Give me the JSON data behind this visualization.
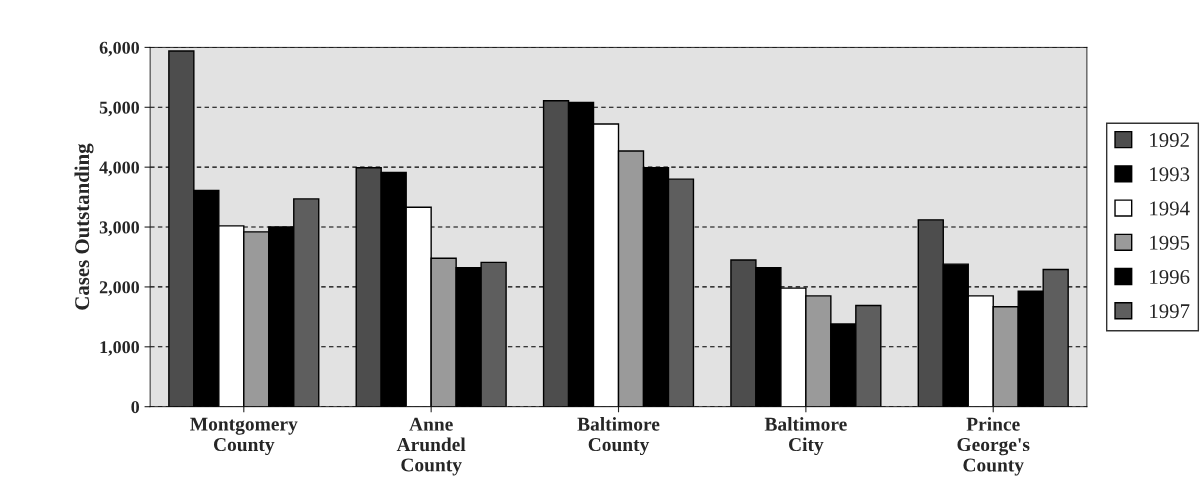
{
  "chart_data": {
    "type": "bar",
    "ylabel": "Cases Outstanding",
    "categories": [
      "Montgomery\nCounty",
      "Anne\nArundel\nCounty",
      "Baltimore\nCounty",
      "Baltimore\nCity",
      "Prince\nGeorge's\nCounty"
    ],
    "series": [
      {
        "name": "1992",
        "color": "#4d4d4d",
        "values": [
          5940,
          3990,
          5110,
          2450,
          3120
        ]
      },
      {
        "name": "1993",
        "color": "#000000",
        "values": [
          3610,
          3910,
          5080,
          2320,
          2380
        ]
      },
      {
        "name": "1994",
        "color": "#ffffff",
        "values": [
          3020,
          3330,
          4720,
          1980,
          1850
        ]
      },
      {
        "name": "1995",
        "color": "#9a9a9a",
        "values": [
          2920,
          2480,
          4270,
          1850,
          1670
        ]
      },
      {
        "name": "1996",
        "color": "#000000",
        "values": [
          3000,
          2320,
          3990,
          1380,
          1930
        ]
      },
      {
        "name": "1997",
        "color": "#5e5e5e",
        "values": [
          3470,
          2410,
          3800,
          1690,
          2290
        ]
      }
    ],
    "ylim": [
      0,
      6000
    ],
    "yticks": [
      {
        "value": 0,
        "label": "0"
      },
      {
        "value": 1000,
        "label": "1,000"
      },
      {
        "value": 2000,
        "label": "2,000"
      },
      {
        "value": 3000,
        "label": "3,000"
      },
      {
        "value": 4000,
        "label": "4,000"
      },
      {
        "value": 5000,
        "label": "5,000"
      },
      {
        "value": 6000,
        "label": "6,000"
      }
    ],
    "grid": "y",
    "legend": "right"
  }
}
